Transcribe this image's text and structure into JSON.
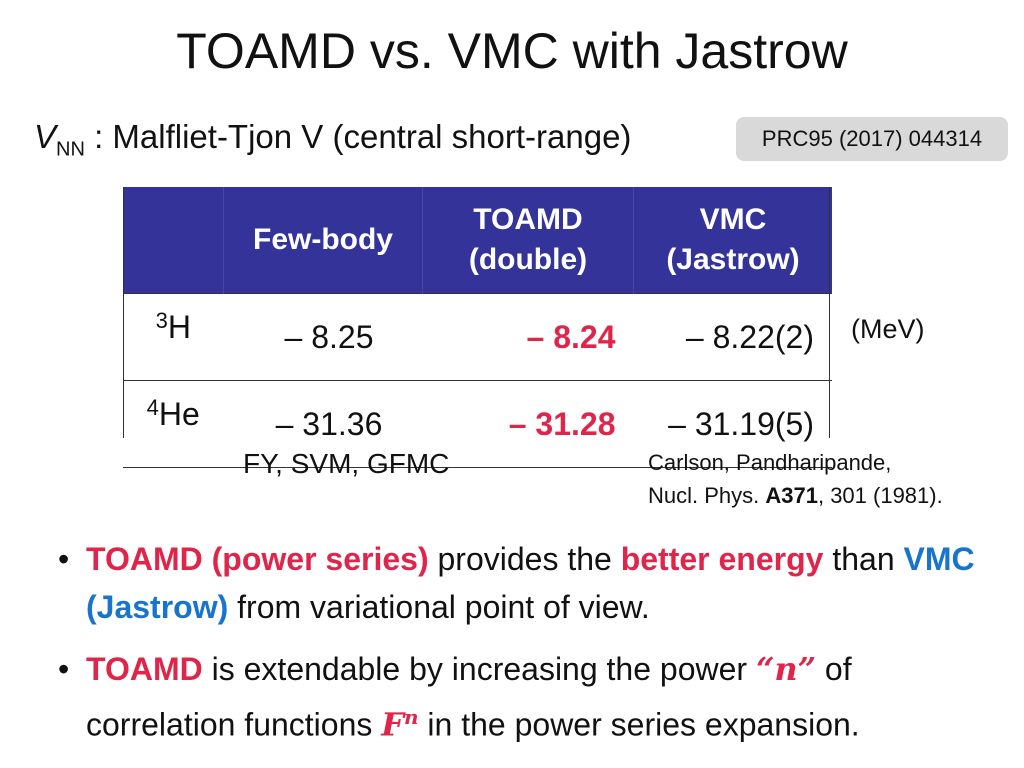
{
  "title": "TOAMD vs. VMC with Jastrow",
  "potential": {
    "symbol": "V",
    "subscript": "NN",
    "description": " : Malfliet-Tjon V  (central short-range)"
  },
  "reference_box": "PRC95 (2017) 044314",
  "table": {
    "headers": [
      "",
      "Few-body",
      "TOAMD",
      "(double)",
      "VMC",
      "(Jastrow)"
    ],
    "rows": [
      {
        "mass": "3",
        "element": "H",
        "fewbody": "– 8.25",
        "toamd": "– 8.24",
        "vmc": "– 8.22(2)"
      },
      {
        "mass": "4",
        "element": "He",
        "fewbody": "– 31.36",
        "toamd": "– 31.28",
        "vmc": "– 31.19(5)"
      }
    ]
  },
  "unit": "(MeV)",
  "fewbody_methods": "FY, SVM, GFMC",
  "citation": {
    "authors": "Carlson, Pandharipande,",
    "journal": "Nucl. Phys. ",
    "volume": "A371",
    "rest": ", 301 (1981)."
  },
  "bullets": {
    "b1": {
      "p1": "TOAMD (power series)",
      "p2": " provides the ",
      "p3": "better energy",
      "p4": " than ",
      "p5": "VMC (Jastrow)",
      "p6": " from variational point of view."
    },
    "b2": {
      "p1": "TOAMD",
      "p2": " is extendable by increasing the power ",
      "p3": "“n”",
      "p4": " of correlation functions ",
      "p5": "F",
      "p6": "n",
      "p7": " in the power series expansion."
    }
  },
  "colors": {
    "header_bg": "#33339a",
    "red": "#e0254a",
    "blue": "#1874cd",
    "ref_box_bg": "#d9d9d9"
  }
}
